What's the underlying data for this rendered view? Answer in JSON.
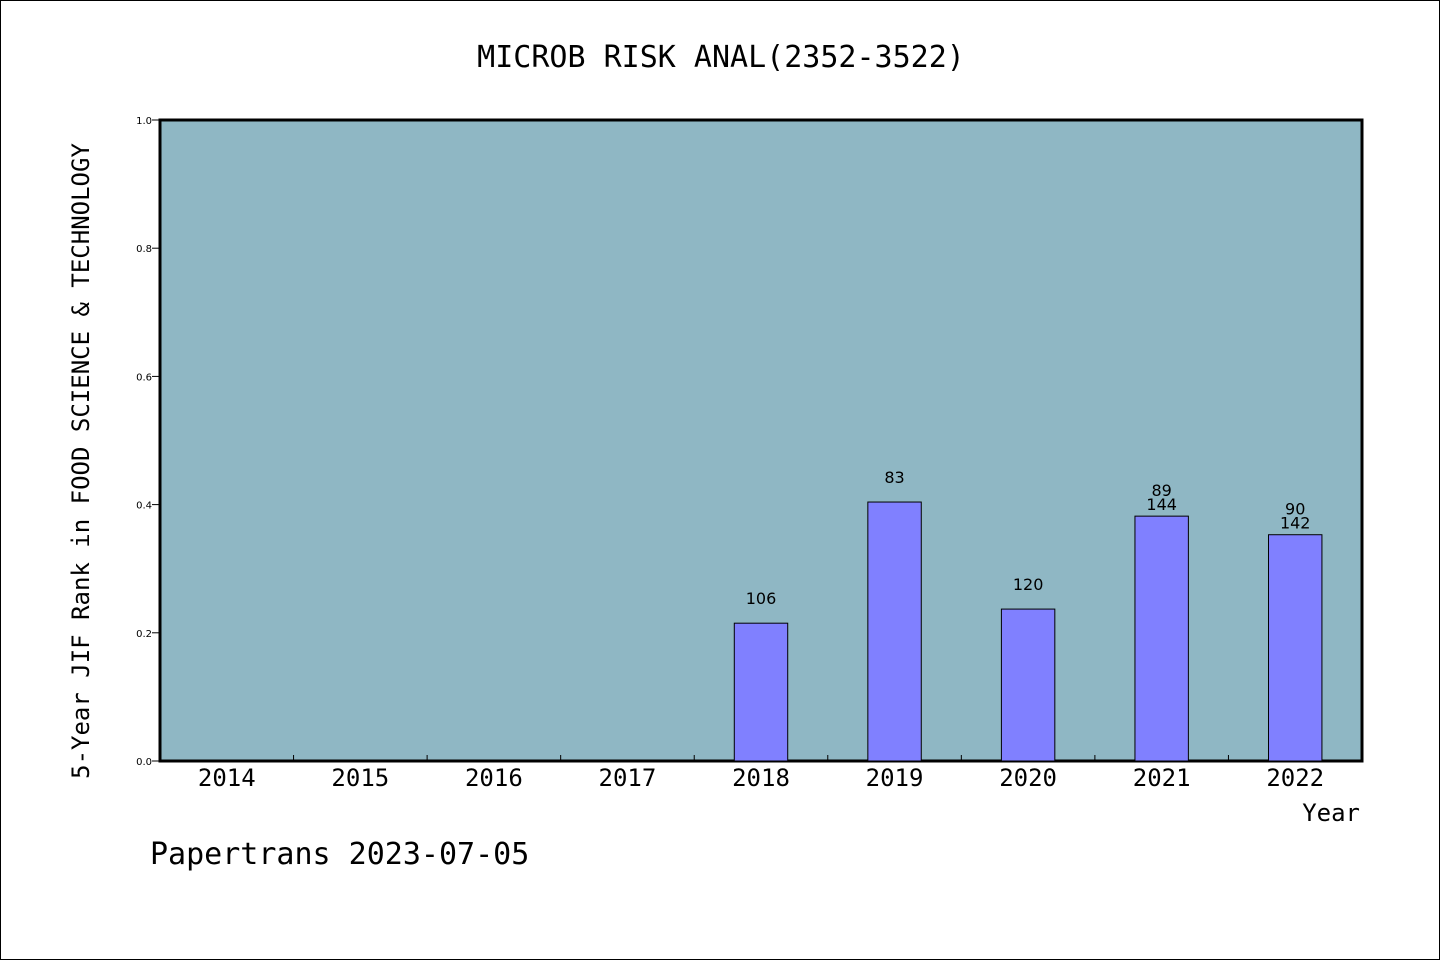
{
  "chart_data": {
    "type": "bar",
    "title": "MICROB RISK ANAL(2352-3522)",
    "xlabel": "Year",
    "ylabel": "5-Year JIF Rank in FOOD SCIENCE & TECHNOLOGY",
    "categories": [
      "2014",
      "2015",
      "2016",
      "2017",
      "2018",
      "2019",
      "2020",
      "2021",
      "2022"
    ],
    "values": [
      null,
      null,
      null,
      null,
      0.215,
      0.404,
      0.237,
      0.382,
      0.353
    ],
    "bar_labels": [
      [],
      [],
      [],
      [],
      [
        "106"
      ],
      [
        "83"
      ],
      [
        "120"
      ],
      [
        "89",
        "144"
      ],
      [
        "90",
        "142"
      ]
    ],
    "ylim": [
      0,
      1.0
    ],
    "yticks": [
      "0.0",
      "0.2",
      "0.4",
      "0.6",
      "0.8",
      "1.0"
    ],
    "grid": false,
    "colors": {
      "plot_background": "#8fb7c4",
      "bar_fill": "#8080ff",
      "bar_stroke": "#000000"
    }
  },
  "footer": {
    "text": "Papertrans 2023-07-05"
  }
}
